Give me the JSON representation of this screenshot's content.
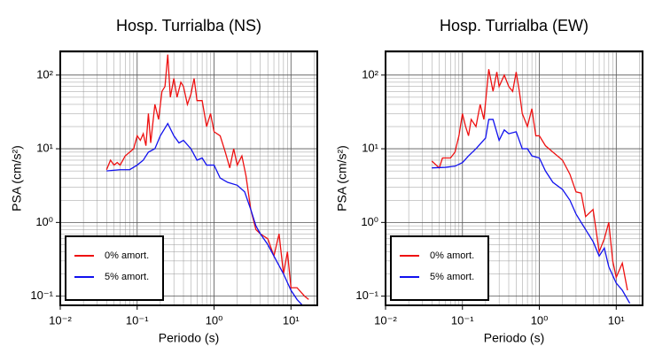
{
  "chart_data": [
    {
      "type": "line",
      "title": "Hosp. Turrialba (NS)",
      "x_label": "Periodo (s)",
      "y_label": "PSA (cm/s²)",
      "log_x": true,
      "log_y": true,
      "grid": true,
      "minor_grid": true,
      "legend": "lower left",
      "xlim": [
        0.01,
        22
      ],
      "ylim": [
        0.075,
        210
      ],
      "xticks": [
        {
          "value": 0.01,
          "label": "10⁻²"
        },
        {
          "value": 0.1,
          "label": "10⁻¹"
        },
        {
          "value": 1,
          "label": "10⁰"
        },
        {
          "value": 10,
          "label": "10¹"
        }
      ],
      "yticks": [
        {
          "value": 0.1,
          "label": "10⁻¹"
        },
        {
          "value": 1,
          "label": "10⁰"
        },
        {
          "value": 10,
          "label": "10¹"
        },
        {
          "value": 100,
          "label": "10²"
        }
      ],
      "series": [
        {
          "name": "0% amort.",
          "color": "#ee1111",
          "x": [
            0.04,
            0.045,
            0.05,
            0.055,
            0.06,
            0.07,
            0.08,
            0.09,
            0.1,
            0.11,
            0.12,
            0.13,
            0.14,
            0.15,
            0.17,
            0.19,
            0.21,
            0.23,
            0.25,
            0.27,
            0.3,
            0.33,
            0.37,
            0.4,
            0.45,
            0.5,
            0.55,
            0.6,
            0.7,
            0.8,
            0.9,
            1.0,
            1.2,
            1.4,
            1.6,
            1.8,
            2.0,
            2.3,
            2.6,
            3.0,
            3.5,
            4,
            5,
            6,
            7,
            8,
            9,
            10,
            12,
            15,
            17
          ],
          "values": [
            5.2,
            7,
            6,
            6.5,
            6,
            8,
            9,
            10,
            15,
            13,
            16,
            11,
            30,
            12,
            40,
            25,
            60,
            70,
            190,
            50,
            90,
            50,
            80,
            70,
            40,
            55,
            90,
            45,
            45,
            20,
            30,
            17,
            15,
            9,
            5.5,
            10,
            6,
            8,
            4.3,
            1.5,
            0.8,
            0.7,
            0.6,
            0.35,
            0.7,
            0.2,
            0.4,
            0.13,
            0.13,
            0.1,
            0.09
          ]
        },
        {
          "name": "5% amort.",
          "color": "#1111ee",
          "x": [
            0.04,
            0.06,
            0.08,
            0.1,
            0.12,
            0.14,
            0.17,
            0.2,
            0.25,
            0.3,
            0.35,
            0.4,
            0.5,
            0.6,
            0.7,
            0.8,
            1.0,
            1.2,
            1.5,
            2,
            2.5,
            3,
            3.5,
            4,
            5,
            6,
            8,
            10,
            12,
            15
          ],
          "values": [
            5,
            5.2,
            5.2,
            6,
            7,
            9,
            10,
            15,
            22,
            15,
            12,
            13,
            10,
            7,
            7.5,
            6,
            6,
            4,
            3.5,
            3.2,
            2.6,
            1.5,
            0.9,
            0.7,
            0.5,
            0.35,
            0.2,
            0.12,
            0.09,
            0.07
          ]
        }
      ]
    },
    {
      "type": "line",
      "title": "Hosp. Turrialba (EW)",
      "x_label": "Periodo (s)",
      "y_label": "PSA (cm/s²)",
      "log_x": true,
      "log_y": true,
      "grid": true,
      "minor_grid": true,
      "legend": "lower left",
      "xlim": [
        0.01,
        22
      ],
      "ylim": [
        0.075,
        210
      ],
      "xticks": [
        {
          "value": 0.01,
          "label": "10⁻²"
        },
        {
          "value": 0.1,
          "label": "10⁻¹"
        },
        {
          "value": 1,
          "label": "10⁰"
        },
        {
          "value": 10,
          "label": "10¹"
        }
      ],
      "yticks": [
        {
          "value": 0.1,
          "label": "10⁻¹"
        },
        {
          "value": 1,
          "label": "10⁰"
        },
        {
          "value": 10,
          "label": "10¹"
        },
        {
          "value": 100,
          "label": "10²"
        }
      ],
      "series": [
        {
          "name": "0% amort.",
          "color": "#ee1111",
          "x": [
            0.04,
            0.05,
            0.055,
            0.07,
            0.08,
            0.09,
            0.1,
            0.11,
            0.12,
            0.13,
            0.15,
            0.17,
            0.19,
            0.22,
            0.25,
            0.28,
            0.3,
            0.35,
            0.4,
            0.45,
            0.5,
            0.55,
            0.6,
            0.7,
            0.8,
            0.9,
            1.0,
            1.2,
            1.5,
            2,
            2.5,
            3,
            3.5,
            4,
            5,
            6,
            7,
            8,
            9,
            10,
            12,
            14
          ],
          "values": [
            6.8,
            5.5,
            7.5,
            7.5,
            9,
            15,
            30,
            20,
            15,
            25,
            20,
            40,
            25,
            120,
            60,
            110,
            70,
            100,
            70,
            60,
            110,
            60,
            30,
            20,
            35,
            15,
            15,
            11,
            9,
            7,
            4.5,
            2.6,
            2.5,
            1.2,
            1.5,
            0.4,
            0.6,
            1.0,
            0.3,
            0.18,
            0.28,
            0.12
          ]
        },
        {
          "name": "5% amort.",
          "color": "#1111ee",
          "x": [
            0.04,
            0.06,
            0.08,
            0.1,
            0.12,
            0.15,
            0.2,
            0.22,
            0.25,
            0.3,
            0.35,
            0.4,
            0.5,
            0.6,
            0.7,
            0.8,
            1.0,
            1.2,
            1.5,
            2,
            2.5,
            3,
            3.5,
            4,
            5,
            6,
            7,
            8,
            10,
            12,
            15
          ],
          "values": [
            5.5,
            5.6,
            5.8,
            6.5,
            8,
            10,
            14,
            25,
            25,
            13,
            18,
            16,
            17,
            10,
            10,
            8,
            7.5,
            5,
            3.5,
            2.8,
            2,
            1.3,
            1,
            0.8,
            0.55,
            0.35,
            0.45,
            0.25,
            0.15,
            0.12,
            0.08
          ]
        }
      ]
    }
  ]
}
